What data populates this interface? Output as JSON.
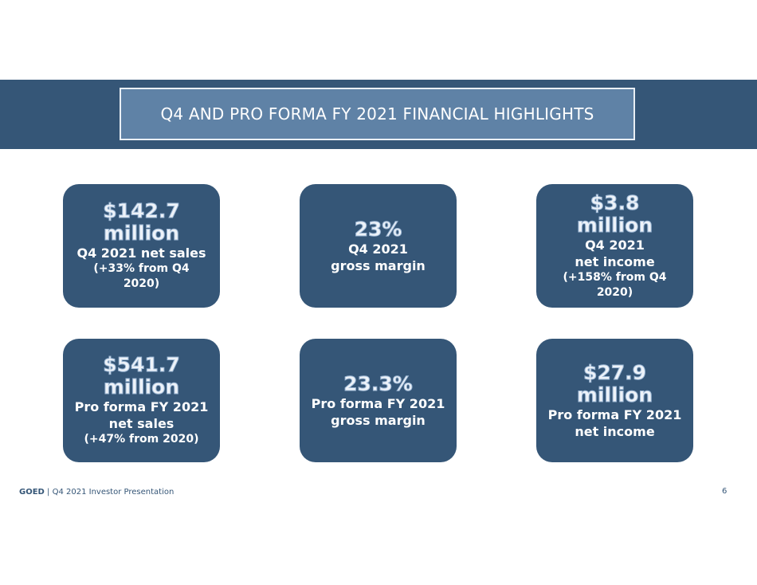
{
  "header": {
    "title": "Q4 AND PRO FORMA FY 2021 FINANCIAL HIGHLIGHTS"
  },
  "cards": [
    {
      "metric_line1": "$142.7",
      "metric_line2": "million",
      "desc_line1": "Q4 2021 net sales",
      "desc_line2": "(+33% from Q4",
      "desc_line3": "2020)"
    },
    {
      "metric_line1": "23%",
      "desc_line1": "Q4 2021",
      "desc_line2": "gross margin"
    },
    {
      "metric_line1": "$3.8",
      "metric_line2": "million",
      "desc_line1": "Q4 2021",
      "desc_line2": "net income",
      "desc_line3": "(+158% from Q4",
      "desc_line4": "2020)"
    },
    {
      "metric_line1": "$541.7",
      "metric_line2": "million",
      "desc_line1": "Pro forma FY 2021",
      "desc_line2": "net sales",
      "desc_line3": "(+47% from 2020)"
    },
    {
      "metric_line1": "23.3%",
      "desc_line1": "Pro forma FY 2021",
      "desc_line2": "gross margin"
    },
    {
      "metric_line1": "$27.9",
      "metric_line2": "million",
      "desc_line1": "Pro forma FY 2021",
      "desc_line2": "net income"
    }
  ],
  "footer": {
    "brand": "GOED",
    "separator": " | ",
    "text": "Q4 2021 Investor Presentation",
    "page_number": "6"
  },
  "colors": {
    "band": "#355677",
    "title_box": "#5f82a6",
    "card": "#355677",
    "footer_text": "#355677"
  }
}
